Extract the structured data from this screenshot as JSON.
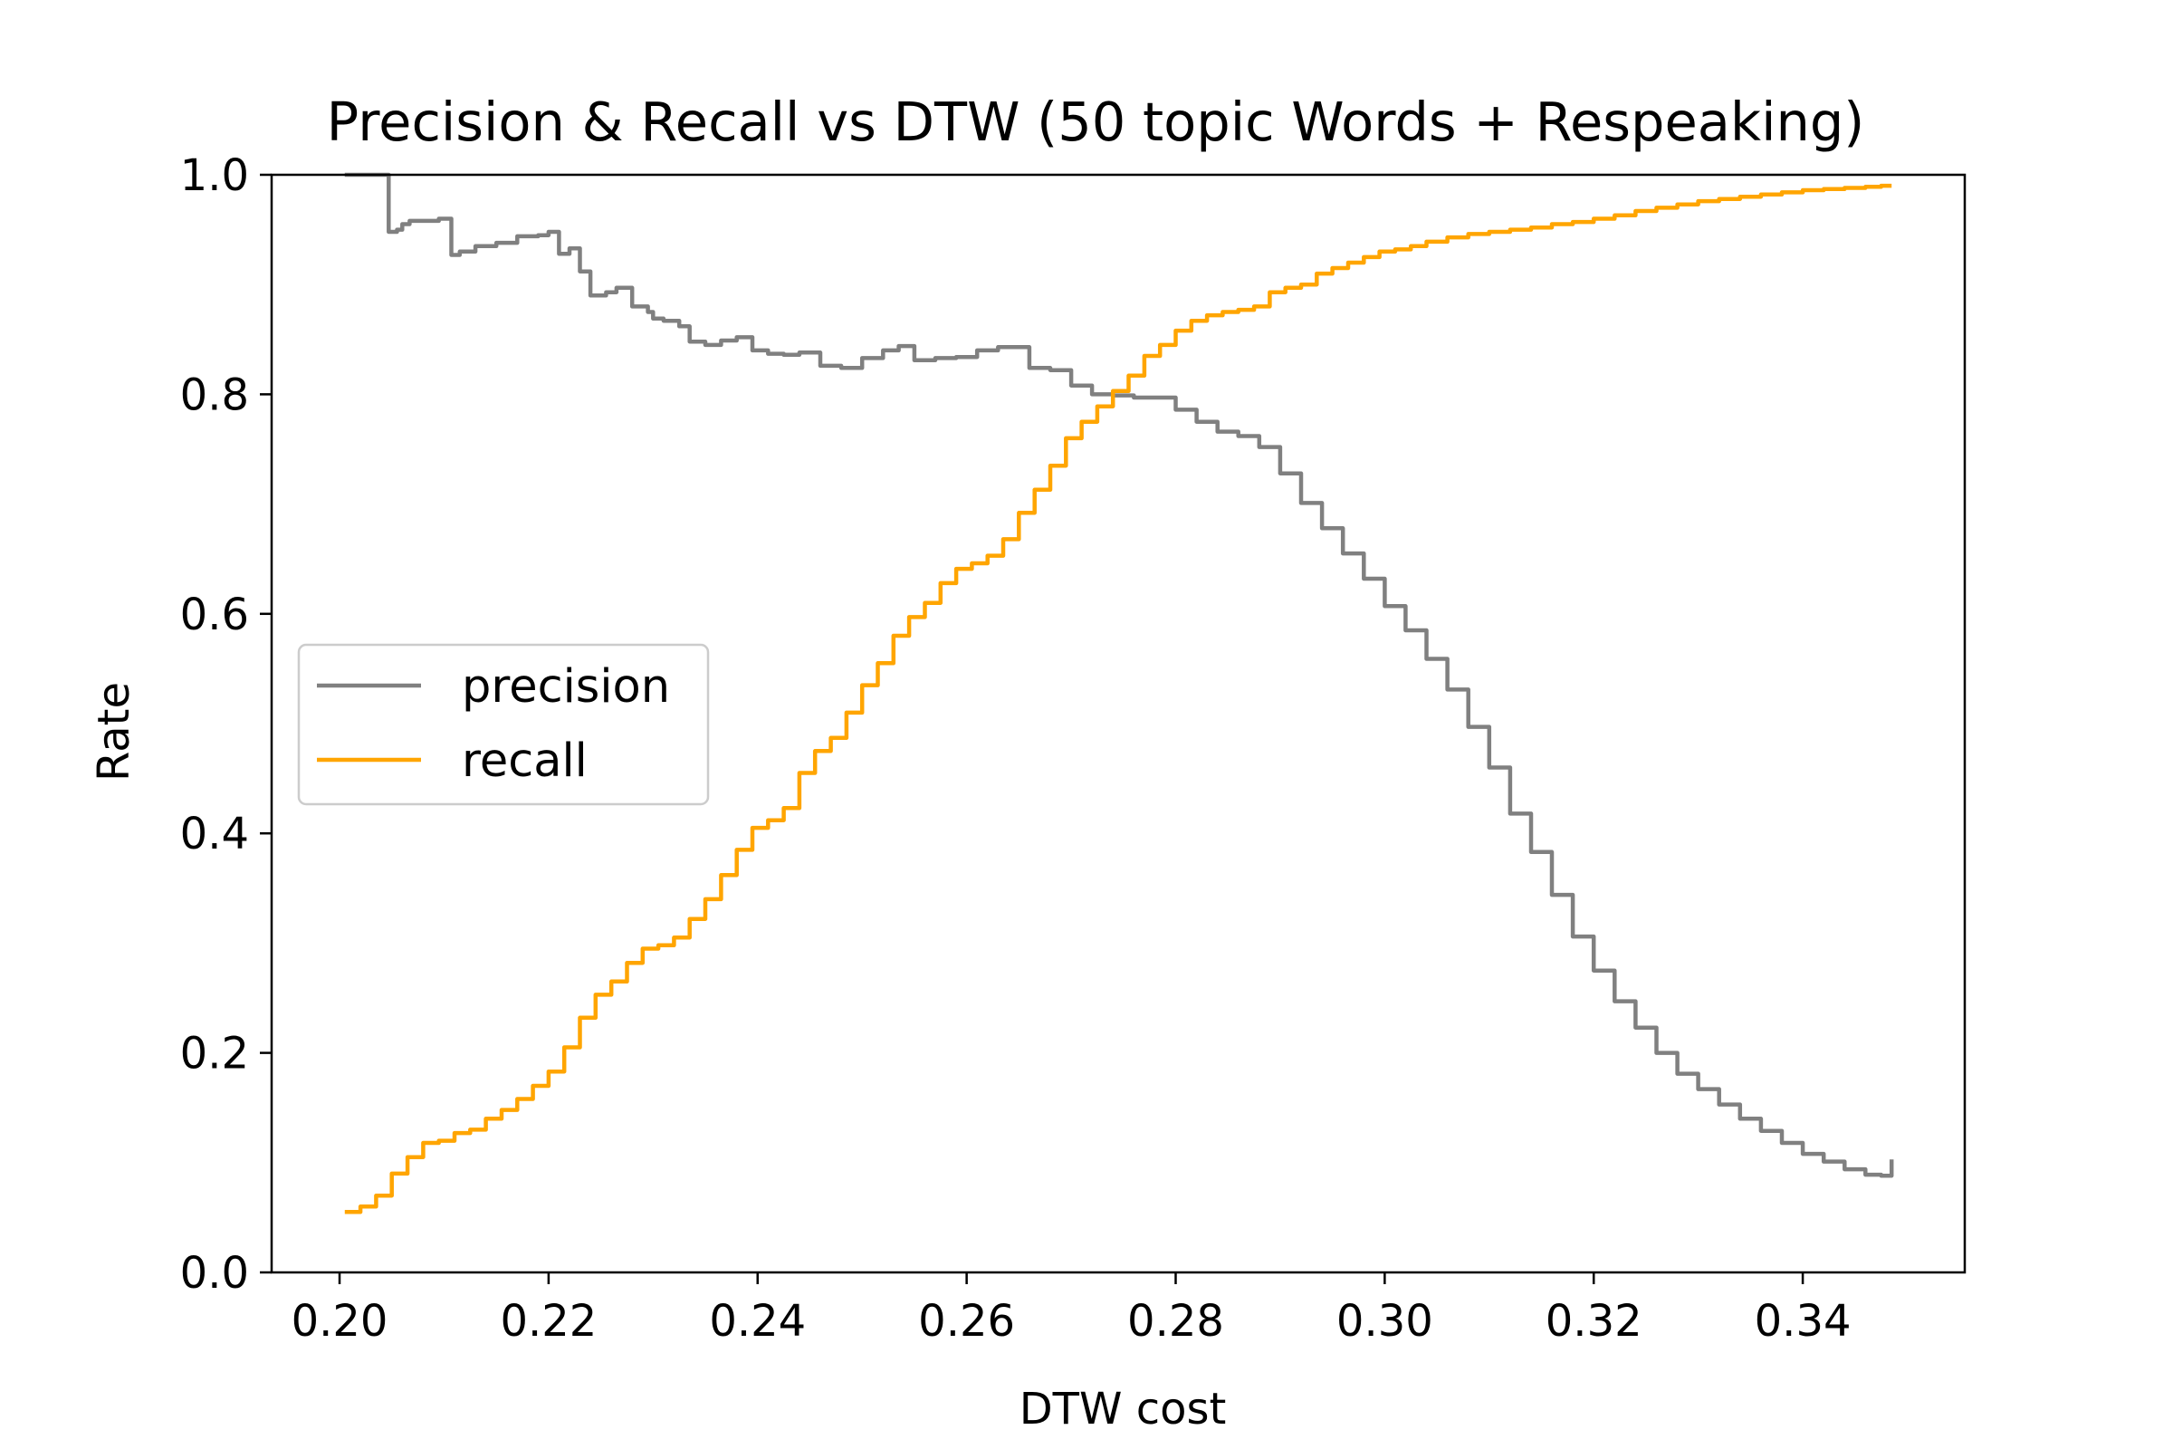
{
  "chart_data": {
    "type": "line",
    "title": "Precision & Recall vs DTW  (50 topic Words + Respeaking)",
    "xlabel": "DTW cost",
    "ylabel": "Rate",
    "xlim": [
      0.1935,
      0.3555
    ],
    "ylim": [
      0.0,
      1.0
    ],
    "xticks": [
      0.2,
      0.22,
      0.24,
      0.26,
      0.28,
      0.3,
      0.32,
      0.34
    ],
    "xtick_labels": [
      "0.20",
      "0.22",
      "0.24",
      "0.26",
      "0.28",
      "0.30",
      "0.32",
      "0.34"
    ],
    "yticks": [
      0.0,
      0.2,
      0.4,
      0.6,
      0.8,
      1.0
    ],
    "ytick_labels": [
      "0.0",
      "0.2",
      "0.4",
      "0.6",
      "0.8",
      "1.0"
    ],
    "grid": false,
    "legend_position": "center-left",
    "series": [
      {
        "name": "precision",
        "color": "#808080",
        "x": [
          0.2005,
          0.2046,
          0.2047,
          0.2055,
          0.206,
          0.2067,
          0.208,
          0.2095,
          0.2106,
          0.2107,
          0.2115,
          0.213,
          0.215,
          0.217,
          0.219,
          0.22,
          0.221,
          0.222,
          0.223,
          0.224,
          0.2255,
          0.2265,
          0.228,
          0.2295,
          0.23,
          0.231,
          0.2325,
          0.2335,
          0.235,
          0.2365,
          0.238,
          0.2395,
          0.241,
          0.2425,
          0.244,
          0.246,
          0.248,
          0.25,
          0.252,
          0.2535,
          0.255,
          0.257,
          0.259,
          0.261,
          0.263,
          0.264,
          0.266,
          0.268,
          0.27,
          0.272,
          0.274,
          0.276,
          0.278,
          0.28,
          0.282,
          0.284,
          0.286,
          0.288,
          0.29,
          0.292,
          0.294,
          0.296,
          0.298,
          0.3,
          0.302,
          0.304,
          0.306,
          0.308,
          0.31,
          0.312,
          0.314,
          0.316,
          0.318,
          0.32,
          0.322,
          0.324,
          0.326,
          0.328,
          0.33,
          0.332,
          0.334,
          0.336,
          0.338,
          0.34,
          0.342,
          0.344,
          0.346,
          0.3475,
          0.3485
        ],
        "y": [
          1.0,
          1.0,
          0.948,
          0.95,
          0.955,
          0.958,
          0.958,
          0.96,
          0.96,
          0.927,
          0.93,
          0.935,
          0.938,
          0.944,
          0.945,
          0.948,
          0.928,
          0.933,
          0.912,
          0.89,
          0.893,
          0.897,
          0.88,
          0.875,
          0.869,
          0.867,
          0.862,
          0.848,
          0.845,
          0.849,
          0.852,
          0.84,
          0.837,
          0.836,
          0.838,
          0.826,
          0.824,
          0.833,
          0.84,
          0.844,
          0.831,
          0.833,
          0.834,
          0.84,
          0.843,
          0.843,
          0.824,
          0.822,
          0.808,
          0.8,
          0.799,
          0.797,
          0.797,
          0.786,
          0.775,
          0.766,
          0.762,
          0.752,
          0.728,
          0.701,
          0.678,
          0.655,
          0.632,
          0.607,
          0.585,
          0.559,
          0.531,
          0.497,
          0.46,
          0.418,
          0.383,
          0.344,
          0.306,
          0.275,
          0.247,
          0.223,
          0.2,
          0.181,
          0.167,
          0.153,
          0.14,
          0.129,
          0.118,
          0.108,
          0.101,
          0.094,
          0.089,
          0.088,
          0.103
        ]
      },
      {
        "name": "recall",
        "color": "#FFA500",
        "x": [
          0.2005,
          0.202,
          0.2035,
          0.205,
          0.2065,
          0.208,
          0.2095,
          0.211,
          0.2125,
          0.214,
          0.2155,
          0.217,
          0.2185,
          0.22,
          0.2215,
          0.223,
          0.2245,
          0.226,
          0.2275,
          0.229,
          0.2305,
          0.232,
          0.2335,
          0.235,
          0.2365,
          0.238,
          0.2395,
          0.241,
          0.2425,
          0.244,
          0.2455,
          0.247,
          0.2485,
          0.25,
          0.2515,
          0.253,
          0.2545,
          0.256,
          0.2575,
          0.259,
          0.2605,
          0.262,
          0.2635,
          0.265,
          0.2665,
          0.268,
          0.2695,
          0.271,
          0.2725,
          0.274,
          0.2755,
          0.277,
          0.2785,
          0.28,
          0.2815,
          0.283,
          0.2845,
          0.286,
          0.2875,
          0.289,
          0.2905,
          0.292,
          0.2935,
          0.295,
          0.2965,
          0.298,
          0.2995,
          0.301,
          0.3025,
          0.304,
          0.306,
          0.308,
          0.31,
          0.312,
          0.314,
          0.316,
          0.318,
          0.32,
          0.322,
          0.324,
          0.326,
          0.328,
          0.33,
          0.332,
          0.334,
          0.336,
          0.338,
          0.34,
          0.342,
          0.344,
          0.346,
          0.3475,
          0.3485
        ],
        "y": [
          0.055,
          0.06,
          0.07,
          0.09,
          0.105,
          0.118,
          0.12,
          0.127,
          0.13,
          0.14,
          0.148,
          0.158,
          0.17,
          0.183,
          0.205,
          0.232,
          0.253,
          0.265,
          0.282,
          0.295,
          0.298,
          0.305,
          0.322,
          0.34,
          0.362,
          0.385,
          0.405,
          0.412,
          0.423,
          0.455,
          0.475,
          0.487,
          0.51,
          0.535,
          0.555,
          0.58,
          0.597,
          0.61,
          0.628,
          0.641,
          0.646,
          0.653,
          0.668,
          0.692,
          0.713,
          0.735,
          0.76,
          0.775,
          0.789,
          0.803,
          0.817,
          0.835,
          0.845,
          0.858,
          0.867,
          0.872,
          0.875,
          0.877,
          0.88,
          0.893,
          0.897,
          0.9,
          0.91,
          0.915,
          0.92,
          0.925,
          0.93,
          0.932,
          0.935,
          0.939,
          0.943,
          0.946,
          0.948,
          0.95,
          0.952,
          0.955,
          0.957,
          0.96,
          0.963,
          0.967,
          0.97,
          0.973,
          0.976,
          0.978,
          0.98,
          0.982,
          0.984,
          0.986,
          0.987,
          0.988,
          0.989,
          0.99,
          0.99
        ]
      }
    ]
  }
}
